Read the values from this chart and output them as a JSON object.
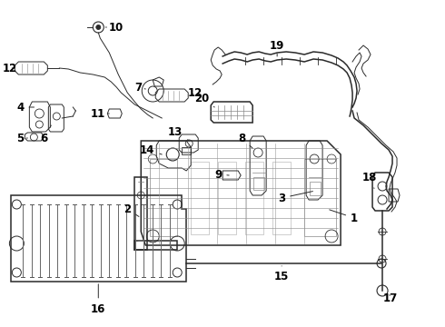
{
  "bg_color": "#ffffff",
  "line_color": "#2a2a2a",
  "label_color": "#000000",
  "label_fontsize": 8.5,
  "fig_width": 4.9,
  "fig_height": 3.6,
  "dpi": 100
}
